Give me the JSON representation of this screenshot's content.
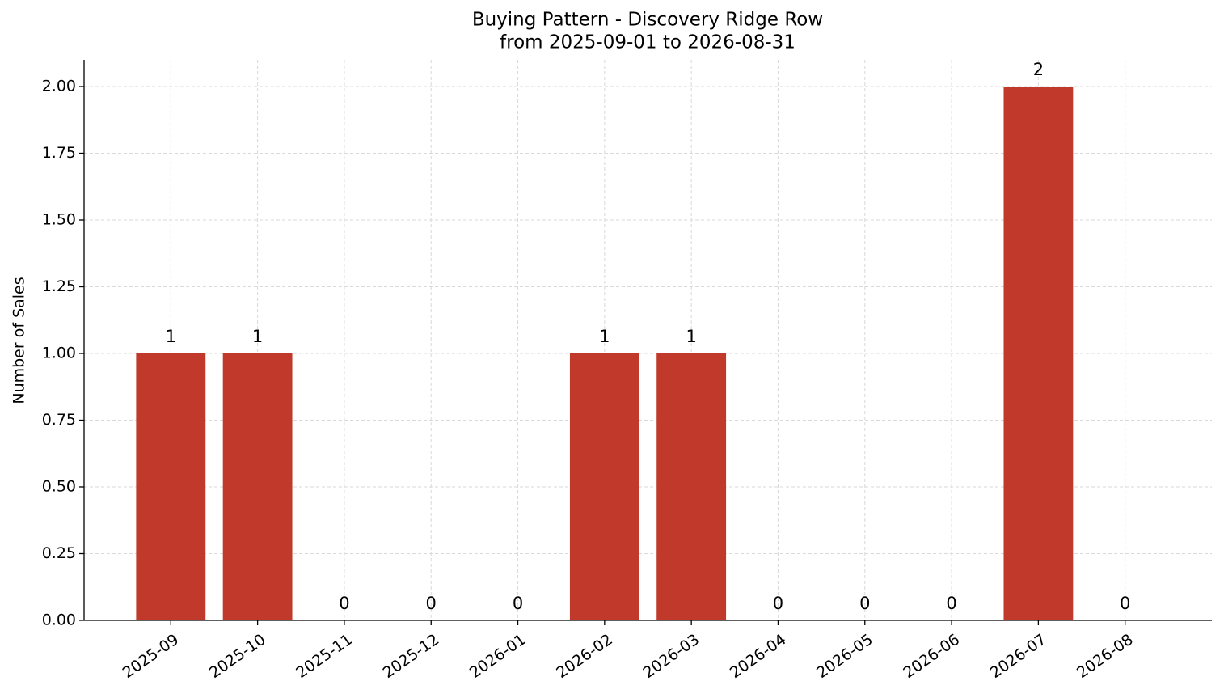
{
  "chart_data": {
    "type": "bar",
    "title": "Buying Pattern - Discovery Ridge Row",
    "subtitle": "from 2025-09-01 to 2026-08-31",
    "y_label": "Number of Sales",
    "categories": [
      "2025-09",
      "2025-10",
      "2025-11",
      "2025-12",
      "2026-01",
      "2026-02",
      "2026-03",
      "2026-04",
      "2026-05",
      "2026-06",
      "2026-07",
      "2026-08"
    ],
    "values": [
      1,
      1,
      0,
      0,
      0,
      1,
      1,
      0,
      0,
      0,
      2,
      0
    ],
    "color": "#c0392b",
    "ylim": [
      0,
      2.1
    ],
    "yticks": [
      {
        "value": 0,
        "label": "0.00"
      },
      {
        "value": 0.25,
        "label": "0.25"
      },
      {
        "value": 0.5,
        "label": "0.50"
      },
      {
        "value": 0.75,
        "label": "0.75"
      },
      {
        "value": 1,
        "label": "1.00"
      },
      {
        "value": 1.25,
        "label": "1.25"
      },
      {
        "value": 1.5,
        "label": "1.50"
      },
      {
        "value": 1.75,
        "label": "1.75"
      },
      {
        "value": 2,
        "label": "2.00"
      }
    ],
    "grid": true
  }
}
